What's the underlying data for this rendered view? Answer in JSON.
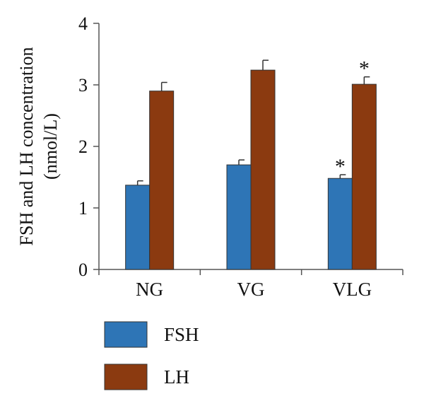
{
  "chart_data": {
    "type": "bar",
    "categories": [
      "NG",
      "VG",
      "VLG"
    ],
    "ylabel_lines": [
      "FSH and LH concentration",
      "(nmol/L)"
    ],
    "ylim": [
      0,
      4
    ],
    "yticks": [
      0,
      1,
      2,
      3,
      4
    ],
    "grid": false,
    "legend_position": "bottom-left",
    "series": [
      {
        "name": "FSH",
        "color": "#2e75b6",
        "values": [
          1.37,
          1.7,
          1.48
        ],
        "errors": [
          0.07,
          0.08,
          0.06
        ],
        "marks": [
          "",
          "",
          "*"
        ]
      },
      {
        "name": "LH",
        "color": "#8b3a10",
        "values": [
          2.9,
          3.24,
          3.01
        ],
        "errors": [
          0.14,
          0.16,
          0.12
        ],
        "marks": [
          "",
          "",
          "*"
        ]
      }
    ]
  }
}
